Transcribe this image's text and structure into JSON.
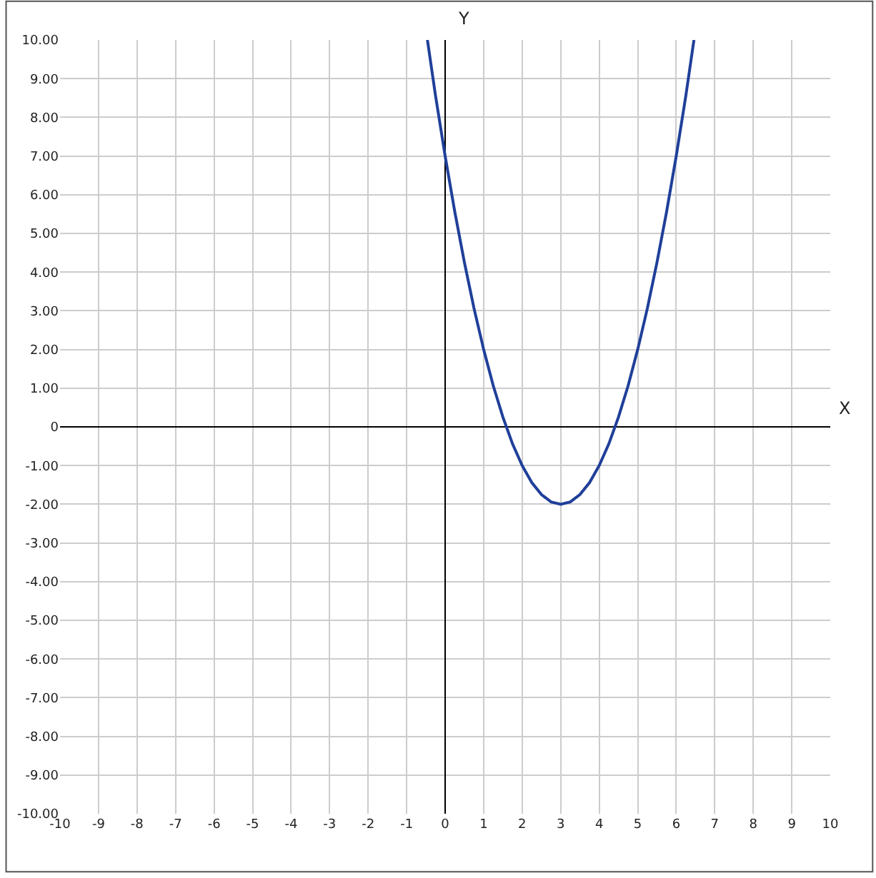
{
  "chart_data": {
    "type": "line",
    "xlabel": "X",
    "ylabel": "Y",
    "x": [
      -0.46,
      -0.25,
      0,
      0.25,
      0.5,
      0.75,
      1,
      1.25,
      1.5,
      1.75,
      2,
      2.25,
      2.5,
      2.75,
      3,
      3.25,
      3.5,
      3.75,
      4,
      4.25,
      4.5,
      4.75,
      5,
      5.25,
      5.5,
      5.75,
      6,
      6.25,
      6.46
    ],
    "series": [
      {
        "color": "#1f3f99",
        "values": [
          10,
          8.56,
          7,
          5.56,
          4.25,
          3.06,
          2,
          1.06,
          0.25,
          -0.44,
          -1,
          -1.44,
          -1.75,
          -1.94,
          -2,
          -1.94,
          -1.75,
          -1.44,
          -1,
          -0.44,
          0.25,
          1.06,
          2,
          3.06,
          4.25,
          5.56,
          7,
          8.56,
          10
        ]
      }
    ],
    "xlim": [
      -10,
      10
    ],
    "ylim": [
      -10,
      10
    ],
    "xticks": [
      -10,
      -9,
      -8,
      -7,
      -6,
      -5,
      -4,
      -3,
      -2,
      -1,
      0,
      1,
      2,
      3,
      4,
      5,
      6,
      7,
      8,
      9,
      10
    ],
    "yticks": [
      {
        "value": 10,
        "label": "10.00"
      },
      {
        "value": 9,
        "label": "9.00"
      },
      {
        "value": 8,
        "label": "8.00"
      },
      {
        "value": 7,
        "label": "7.00"
      },
      {
        "value": 6,
        "label": "6.00"
      },
      {
        "value": 5,
        "label": "5.00"
      },
      {
        "value": 4,
        "label": "4.00"
      },
      {
        "value": 3,
        "label": "3.00"
      },
      {
        "value": 2,
        "label": "2.00"
      },
      {
        "value": 1,
        "label": "1.00"
      },
      0,
      {
        "value": -1,
        "label": "-1.00"
      },
      {
        "value": -2,
        "label": "-2.00"
      },
      {
        "value": -3,
        "label": "-3.00"
      },
      {
        "value": -4,
        "label": "-4.00"
      },
      {
        "value": -5,
        "label": "-5.00"
      },
      {
        "value": -6,
        "label": "-6.00"
      },
      {
        "value": -7,
        "label": "-7.00"
      },
      {
        "value": -8,
        "label": "-8.00"
      },
      {
        "value": -9,
        "label": "-9.00"
      },
      {
        "value": -10,
        "label": "-10.00"
      }
    ],
    "grid": true,
    "marker": "none",
    "line_style": "solid"
  }
}
